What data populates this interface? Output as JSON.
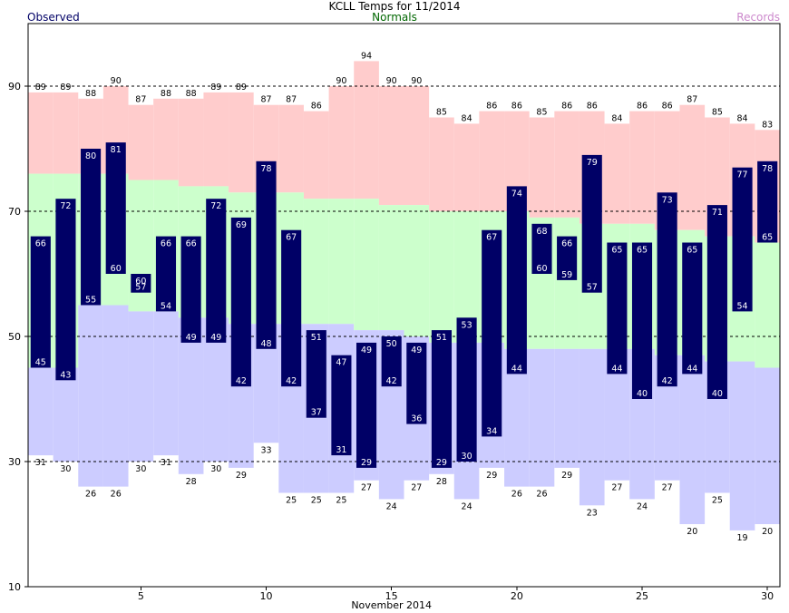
{
  "chart_data": {
    "type": "bar",
    "title": "KCLL Temps for 11/2014",
    "xlabel": "November 2014",
    "ylabel": "",
    "ylim": [
      10,
      100
    ],
    "xlim": [
      0.5,
      30.5
    ],
    "yticks": [
      10,
      30,
      50,
      70,
      90
    ],
    "xticks": [
      5,
      10,
      15,
      20,
      25,
      30
    ],
    "grid": "dashed horizontal at 30, 50, 70, 90",
    "legend": [
      {
        "label": "Observed",
        "color": "#000066"
      },
      {
        "label": "Normals",
        "color": "#006600"
      },
      {
        "label": "Records",
        "color": "#CC88CC"
      }
    ],
    "days": [
      1,
      2,
      3,
      4,
      5,
      6,
      7,
      8,
      9,
      10,
      11,
      12,
      13,
      14,
      15,
      16,
      17,
      18,
      19,
      20,
      21,
      22,
      23,
      24,
      25,
      26,
      27,
      28,
      29,
      30
    ],
    "record_high": [
      89,
      89,
      88,
      90,
      87,
      88,
      88,
      89,
      89,
      87,
      87,
      86,
      90,
      94,
      90,
      90,
      85,
      84,
      86,
      86,
      85,
      86,
      86,
      84,
      86,
      86,
      87,
      85,
      84,
      83
    ],
    "normal_high": [
      76,
      76,
      76,
      76,
      75,
      75,
      74,
      74,
      73,
      73,
      73,
      72,
      72,
      72,
      71,
      71,
      70,
      70,
      70,
      70,
      69,
      69,
      68,
      68,
      68,
      67,
      67,
      66,
      66,
      65
    ],
    "normal_low": [
      45,
      45,
      55,
      55,
      54,
      54,
      53,
      53,
      52,
      52,
      52,
      52,
      52,
      51,
      51,
      50,
      49,
      49,
      49,
      48,
      48,
      48,
      48,
      48,
      48,
      47,
      47,
      46,
      46,
      45
    ],
    "record_low": [
      31,
      30,
      26,
      26,
      30,
      31,
      28,
      30,
      29,
      33,
      25,
      25,
      25,
      27,
      24,
      27,
      28,
      24,
      29,
      26,
      26,
      29,
      23,
      27,
      24,
      27,
      20,
      25,
      19,
      20
    ],
    "series": [
      {
        "name": "Observed High",
        "values": [
          66,
          72,
          80,
          81,
          60,
          66,
          66,
          72,
          69,
          78,
          67,
          51,
          47,
          49,
          50,
          49,
          51,
          53,
          67,
          74,
          68,
          66,
          79,
          65,
          65,
          73,
          65,
          71,
          77,
          78
        ]
      },
      {
        "name": "Observed Low",
        "values": [
          45,
          43,
          55,
          60,
          57,
          54,
          49,
          49,
          42,
          48,
          42,
          37,
          31,
          29,
          42,
          36,
          29,
          30,
          34,
          44,
          60,
          59,
          57,
          44,
          40,
          42,
          44,
          40,
          54,
          65
        ]
      }
    ],
    "colors": {
      "record_band": "#FFCCCC",
      "normal_band": "#CCFFCC",
      "low_band": "#CCCCFF",
      "observed_bar": "#000066",
      "bar_label": "#FFFFFF",
      "grid": "#000000"
    }
  }
}
